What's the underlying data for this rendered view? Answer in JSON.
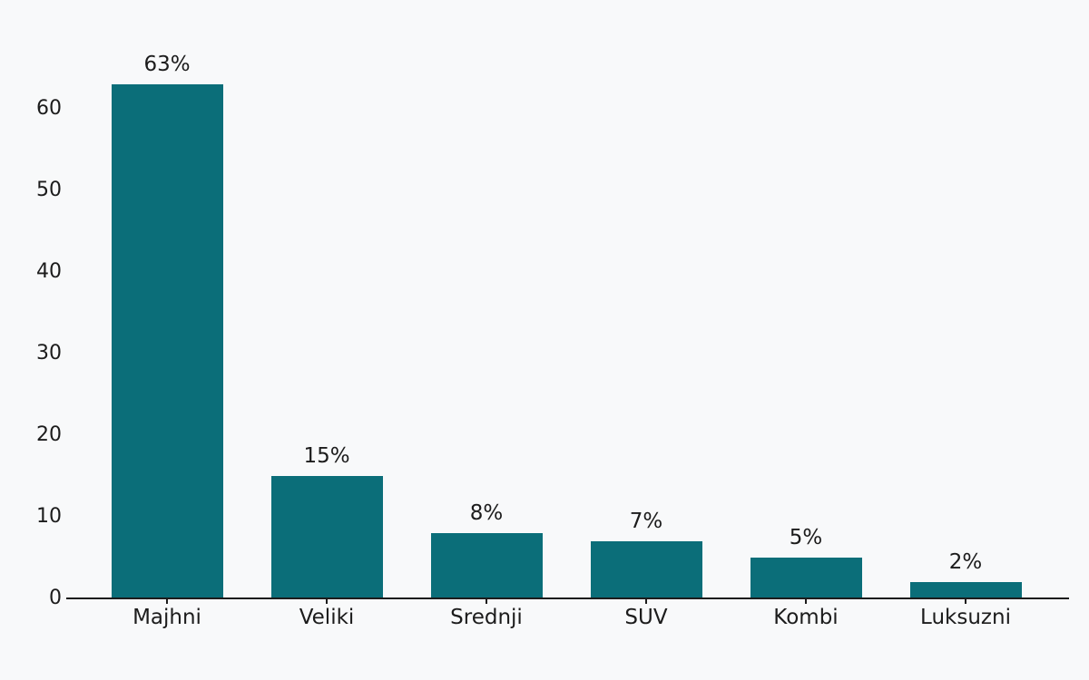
{
  "chart_data": {
    "type": "bar",
    "title": "",
    "xlabel": "",
    "ylabel": "",
    "categories": [
      "Majhni",
      "Veliki",
      "Srednji",
      "SUV",
      "Kombi",
      "Luksuzni"
    ],
    "values": [
      63,
      15,
      8,
      7,
      5,
      2
    ],
    "value_labels": [
      "63%",
      "15%",
      "8%",
      "7%",
      "5%",
      "2%"
    ],
    "yticks": [
      0,
      10,
      20,
      30,
      40,
      50,
      60
    ],
    "ylim": [
      0,
      66
    ],
    "grid": false,
    "legend_position": "none",
    "bar_color": "#0b6e79",
    "background_color": "#f8f9fa",
    "text_color": "#1c1c1c"
  }
}
